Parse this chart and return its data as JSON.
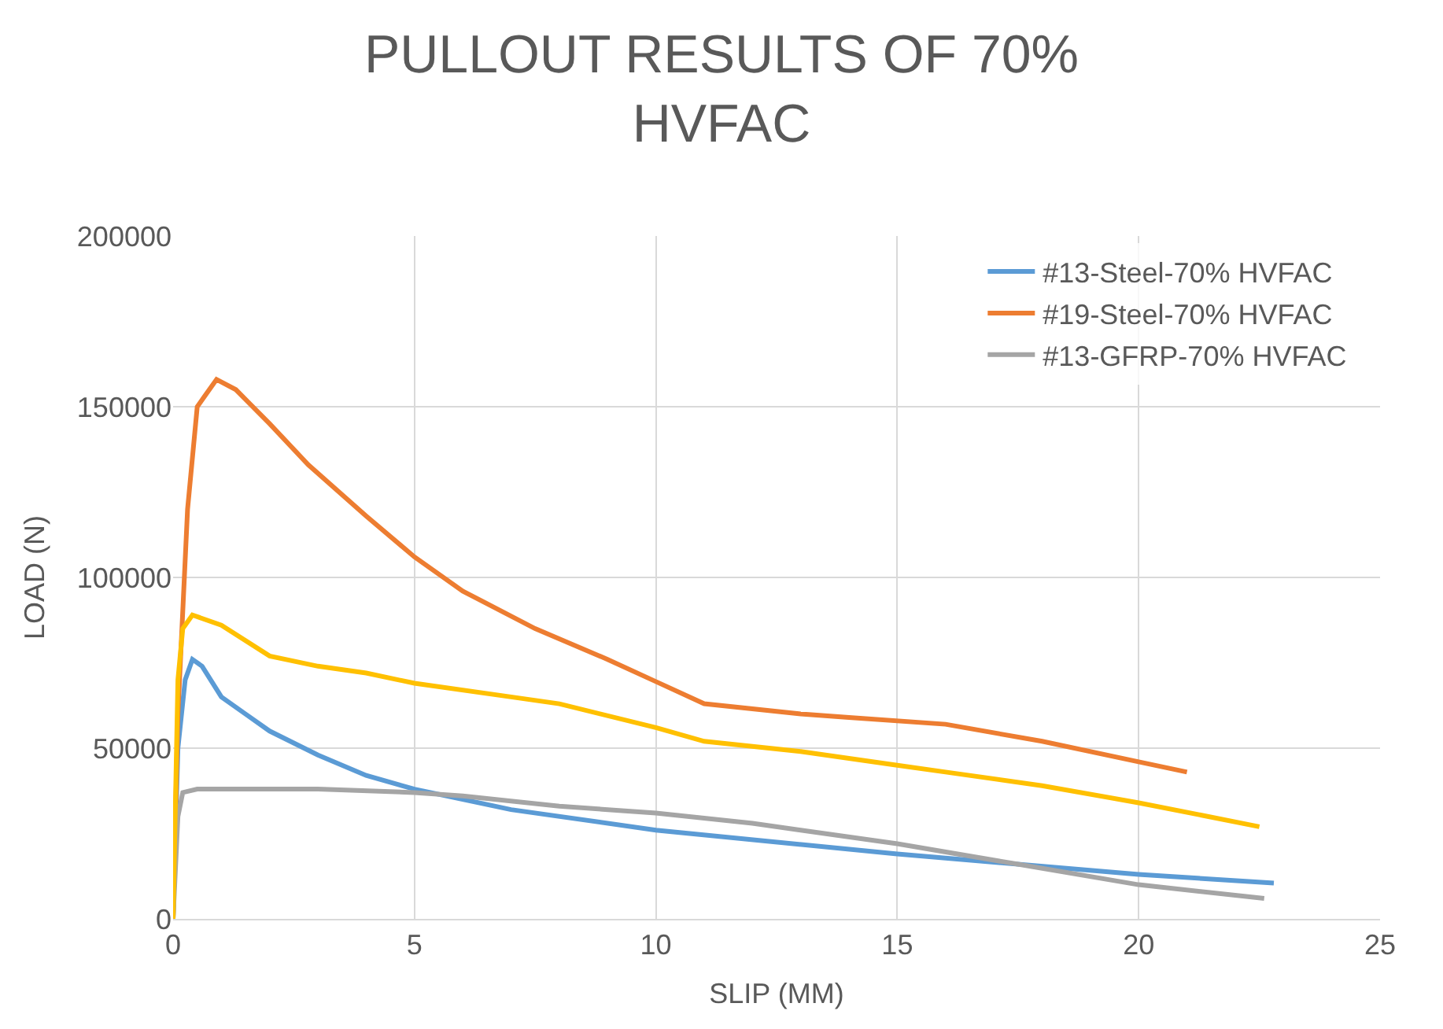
{
  "chart_data": {
    "type": "line",
    "title": "PULLOUT RESULTS OF 70%\nHVFAC",
    "xlabel": "SLIP (MM)",
    "ylabel": "LOAD (N)",
    "xlim": [
      0,
      25
    ],
    "xticks": [
      0,
      5,
      10,
      15,
      20,
      25
    ],
    "ylim": [
      0,
      200000
    ],
    "yticks": [
      0,
      50000,
      100000,
      150000,
      200000
    ],
    "grid": true,
    "legend": "top right",
    "marker": "none",
    "line_style": "solid",
    "series": [
      {
        "name": "#13-Steel-70% HVFAC",
        "color": "#5b9bd5",
        "x": [
          0,
          0.1,
          0.25,
          0.4,
          0.6,
          1,
          1.5,
          2,
          3,
          4,
          5,
          7,
          10,
          15,
          20,
          22.8
        ],
        "values": [
          0,
          50000,
          70000,
          76000,
          74000,
          65000,
          60000,
          55000,
          48000,
          42000,
          38000,
          32000,
          26000,
          19000,
          13000,
          10500
        ]
      },
      {
        "name": "#19-Steel-70% HVFAC",
        "color": "#ed7d31",
        "x": [
          0,
          0.1,
          0.3,
          0.5,
          0.9,
          1.3,
          2,
          2.8,
          4,
          5,
          6,
          7.5,
          9,
          10,
          11,
          13,
          14,
          16,
          18,
          20,
          21
        ],
        "values": [
          0,
          60000,
          120000,
          150000,
          158000,
          155000,
          145000,
          133000,
          118000,
          106000,
          96000,
          85000,
          76000,
          69500,
          63000,
          60000,
          59000,
          57000,
          52000,
          46000,
          43000
        ]
      },
      {
        "name": "#13-GFRP-70% HVFAC",
        "color": "#a5a5a5",
        "x": [
          0,
          0.1,
          0.2,
          0.5,
          3,
          5,
          6,
          8,
          10,
          12,
          13,
          15,
          17.5,
          20,
          22.6
        ],
        "values": [
          0,
          30000,
          37000,
          38000,
          38000,
          37000,
          36000,
          33000,
          31000,
          28000,
          26000,
          22000,
          16000,
          10000,
          6000
        ]
      },
      {
        "color": "#ffc000",
        "x": [
          0,
          0.1,
          0.2,
          0.4,
          1,
          2,
          3,
          4,
          5,
          7,
          8,
          10,
          11,
          13,
          15,
          16,
          18,
          20,
          22.5
        ],
        "values": [
          0,
          70000,
          85000,
          89000,
          86000,
          77000,
          74000,
          72000,
          69000,
          65000,
          63000,
          56000,
          52000,
          49000,
          45000,
          43000,
          39000,
          34000,
          27000
        ]
      }
    ]
  }
}
